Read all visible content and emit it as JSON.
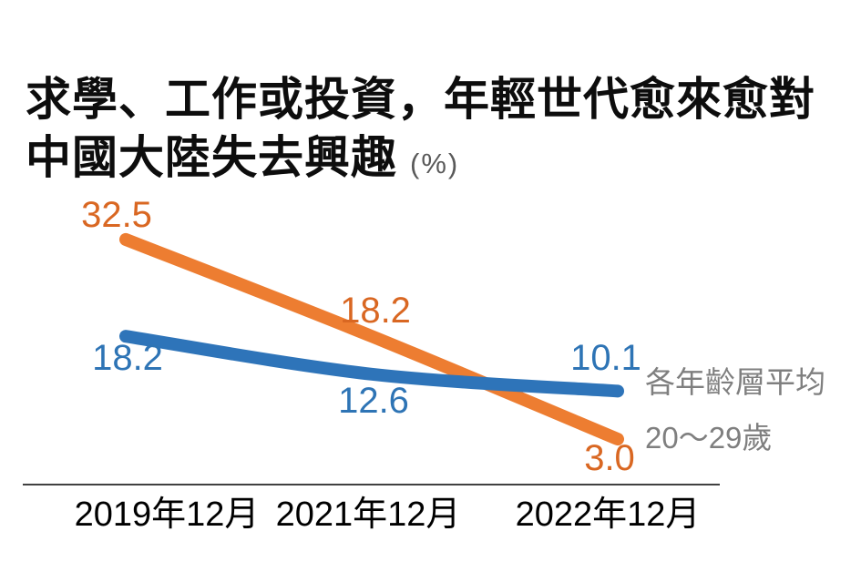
{
  "title": {
    "line1": "求學、工作或投資，年輕世代愈來愈對",
    "line2": "中國大陸失去興趣",
    "unit": "(%)"
  },
  "chart_data": {
    "type": "line",
    "categories": [
      "2019年12月",
      "2021年12月",
      "2022年12月"
    ],
    "series": [
      {
        "name": "20～29歲",
        "values": [
          32.5,
          18.2,
          3.0
        ],
        "labels": [
          "32.5",
          "18.2",
          "3.0"
        ],
        "color": "#ED7D31",
        "label_color": "#D96722"
      },
      {
        "name": "各年齡層平均",
        "values": [
          18.2,
          12.6,
          10.1
        ],
        "labels": [
          "18.2",
          "12.6",
          "10.1"
        ],
        "color": "#2E74B9",
        "label_color": "#2E74B5"
      }
    ],
    "unit": "%",
    "ylim": [
      0,
      35
    ],
    "grid": false,
    "legend_position": "right-end-of-lines",
    "axis_line_color": "#404040",
    "legend_text_color": "#7F7F7F"
  }
}
